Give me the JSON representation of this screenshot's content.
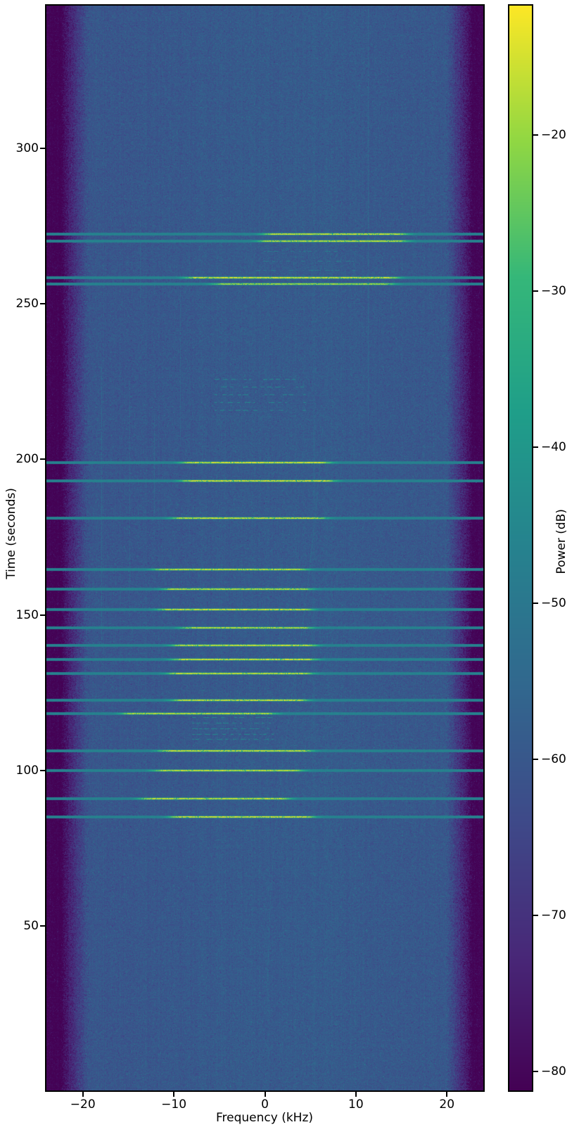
{
  "figure": {
    "background": "#ffffff"
  },
  "chart_data": {
    "type": "heatmap",
    "subtype": "spectrogram-waterfall",
    "title": "",
    "xlabel": "Frequency (kHz)",
    "ylabel": "Time (seconds)",
    "colorbar_label": "Power (dB)",
    "colormap": "viridis",
    "grid": false,
    "xlim": [
      -24,
      24
    ],
    "ylim": [
      -3,
      346
    ],
    "xticks": [
      {
        "v": -20,
        "label": "−20"
      },
      {
        "v": -10,
        "label": "−10"
      },
      {
        "v": 0,
        "label": "0"
      },
      {
        "v": 10,
        "label": "10"
      },
      {
        "v": 20,
        "label": "20"
      }
    ],
    "yticks": [
      {
        "v": 50,
        "label": "50"
      },
      {
        "v": 100,
        "label": "100"
      },
      {
        "v": 150,
        "label": "150"
      },
      {
        "v": 200,
        "label": "200"
      },
      {
        "v": 250,
        "label": "250"
      },
      {
        "v": 300,
        "label": "300"
      }
    ],
    "colorbar": {
      "vmin": -81.2,
      "vmax": -11.7,
      "ticks": [
        {
          "v": -20,
          "label": "−20"
        },
        {
          "v": -30,
          "label": "−30"
        },
        {
          "v": -40,
          "label": "−40"
        },
        {
          "v": -50,
          "label": "−50"
        },
        {
          "v": -60,
          "label": "−60"
        },
        {
          "v": -70,
          "label": "−70"
        },
        {
          "v": -80,
          "label": "−80"
        }
      ]
    },
    "noise_model": {
      "floor_db": -60.4,
      "edge_db": -80.6,
      "passband_khz": [
        -19.3,
        19.9
      ],
      "edge_full_khz": [
        -22.3,
        22.8
      ],
      "sigma_db": 3.1,
      "edge_sigma_db": 4.6,
      "center_hump": {
        "center_khz": 4,
        "width_khz": 11,
        "gain_db": 1.6
      },
      "line_base_db": -47.0
    },
    "bursts": [
      {
        "t": 272.7,
        "f1": 0.5,
        "f2": 15.0,
        "peak": -15
      },
      {
        "t": 270.4,
        "f1": 0.0,
        "f2": 15.0,
        "peak": -16
      },
      {
        "t": 258.7,
        "f1": -8.0,
        "f2": 14.0,
        "peak": -14
      },
      {
        "t": 256.6,
        "f1": -5.0,
        "f2": 13.5,
        "peak": -18
      },
      {
        "t": 199.3,
        "f1": -8.5,
        "f2": 6.5,
        "peak": -14
      },
      {
        "t": 193.4,
        "f1": -8.5,
        "f2": 7.0,
        "peak": -14
      },
      {
        "t": 181.4,
        "f1": -9.5,
        "f2": 6.0,
        "peak": -15
      },
      {
        "t": 164.8,
        "f1": -11.5,
        "f2": 4.0,
        "peak": -15
      },
      {
        "t": 158.5,
        "f1": -10.5,
        "f2": 4.5,
        "peak": -16
      },
      {
        "t": 151.9,
        "f1": -11.0,
        "f2": 4.5,
        "peak": -14
      },
      {
        "t": 146.1,
        "f1": -8.5,
        "f2": 4.5,
        "peak": -16
      },
      {
        "t": 140.5,
        "f1": -9.5,
        "f2": 5.0,
        "peak": -15
      },
      {
        "t": 135.8,
        "f1": -9.5,
        "f2": 5.0,
        "peak": -14
      },
      {
        "t": 131.4,
        "f1": -10.0,
        "f2": 4.5,
        "peak": -15
      },
      {
        "t": 122.8,
        "f1": -9.5,
        "f2": 4.0,
        "peak": -15
      },
      {
        "t": 118.5,
        "f1": -15.0,
        "f2": 0.5,
        "peak": -16
      },
      {
        "t": 106.5,
        "f1": -11.0,
        "f2": 4.5,
        "peak": -15
      },
      {
        "t": 100.1,
        "f1": -11.5,
        "f2": 3.5,
        "peak": -16
      },
      {
        "t": 91.2,
        "f1": -13.0,
        "f2": 2.0,
        "peak": -15
      },
      {
        "t": 85.2,
        "f1": -9.7,
        "f2": 4.7,
        "peak": -14
      }
    ],
    "dot_clusters": [
      {
        "t1": 216,
        "t2": 226,
        "f1": -5.5,
        "f2": 4.5,
        "rows": 5,
        "p": -45.5
      },
      {
        "t1": 261,
        "t2": 267,
        "f1": -1.0,
        "f2": 10.0,
        "rows": 3,
        "p": -49.0
      },
      {
        "t1": 110,
        "t2": 117,
        "f1": -8.0,
        "f2": 1.0,
        "rows": 5,
        "p": -45.5
      }
    ],
    "carriers": [
      {
        "f": 11.3,
        "t1": 213,
        "t2": 345,
        "p": -54.5
      },
      {
        "f": 5.4,
        "t1": 186,
        "t2": 214,
        "p": -55.0
      },
      {
        "f": -18.0,
        "t1": 140,
        "t2": 230,
        "p": -54.5
      },
      {
        "f": -14.9,
        "t1": 150,
        "t2": 225,
        "p": -55.0
      },
      {
        "f": -12.2,
        "t1": 183,
        "t2": 215,
        "p": -55.0
      },
      {
        "f": -9.3,
        "t1": 205,
        "t2": 260,
        "p": -55.5
      },
      {
        "f": -13.7,
        "t1": 250,
        "t2": 276,
        "p": -55.5
      },
      {
        "f": -21.5,
        "t1": -3,
        "t2": 346,
        "p": -72.0
      }
    ],
    "drift_trace": {
      "points": [
        [
          30,
          0.2
        ],
        [
          60,
          0.6
        ],
        [
          85,
          1.2
        ],
        [
          100,
          1.8
        ],
        [
          120,
          2.7
        ],
        [
          140,
          3.8
        ],
        [
          160,
          4.7
        ],
        [
          185,
          5.6
        ],
        [
          210,
          6.3
        ]
      ],
      "p": -55.0
    },
    "status_colors": {
      "burst_peak": "#f8e621",
      "line_teal": "#2a8a8d",
      "noise_floor": "#31688e",
      "band_edge": "#450558"
    }
  }
}
